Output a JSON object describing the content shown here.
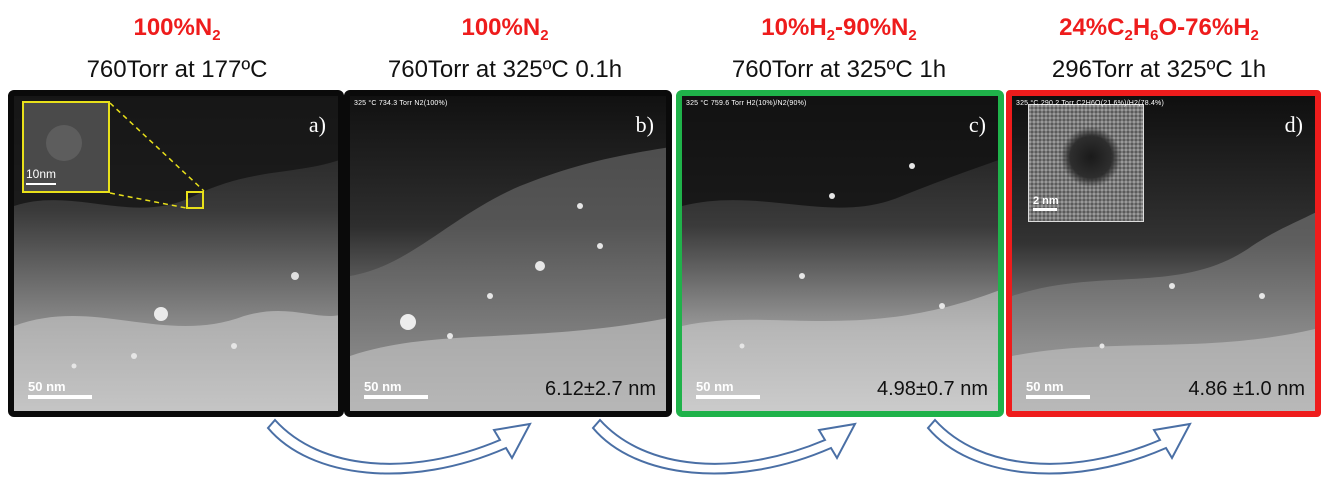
{
  "panels": [
    {
      "gas_parts": [
        {
          "t": "100%N"
        },
        {
          "s": "2"
        }
      ],
      "condition": "760Torr at 177ºC",
      "letter": "a)",
      "meta": "",
      "scale": "50 nm",
      "inset_scale": "10nm",
      "size": "",
      "frame": "black"
    },
    {
      "gas_parts": [
        {
          "t": "100%N"
        },
        {
          "s": "2"
        }
      ],
      "condition": "760Torr at 325ºC 0.1h",
      "letter": "b)",
      "meta": "325 °C    734.3 Torr    N2(100%)",
      "scale": "50 nm",
      "size": "6.12±2.7 nm",
      "frame": "black"
    },
    {
      "gas_parts": [
        {
          "t": "10%H"
        },
        {
          "s": "2"
        },
        {
          "t": "-90%N"
        },
        {
          "s": "2"
        }
      ],
      "condition": "760Torr at 325ºC 1h",
      "letter": "c)",
      "meta": "325 °C    759.6 Torr    H2(10%)/N2(90%)",
      "scale": "50 nm",
      "size": "4.98±0.7 nm",
      "frame": "green"
    },
    {
      "gas_parts": [
        {
          "t": "24%C"
        },
        {
          "s": "2"
        },
        {
          "t": "H"
        },
        {
          "s": "6"
        },
        {
          "t": "O-76%H"
        },
        {
          "s": "2"
        }
      ],
      "condition": "296Torr at 325ºC 1h",
      "letter": "d)",
      "meta": "325 °C    290.2 Torr    C2H6O(21.6%)/H2(78.4%)",
      "scale": "50 nm",
      "inset_scale": "2 nm",
      "size": "4.86 ±1.0 nm",
      "frame": "red"
    }
  ],
  "colors": {
    "title_red": "#ee1c1c",
    "frame_green": "#1fb24a",
    "frame_red": "#ee1c1c",
    "inset_yellow": "#e8e01a",
    "arrow_outline": "#4a6fa5"
  },
  "icons": [
    "curved-arrow-icon",
    "curved-arrow-icon",
    "curved-arrow-icon"
  ]
}
